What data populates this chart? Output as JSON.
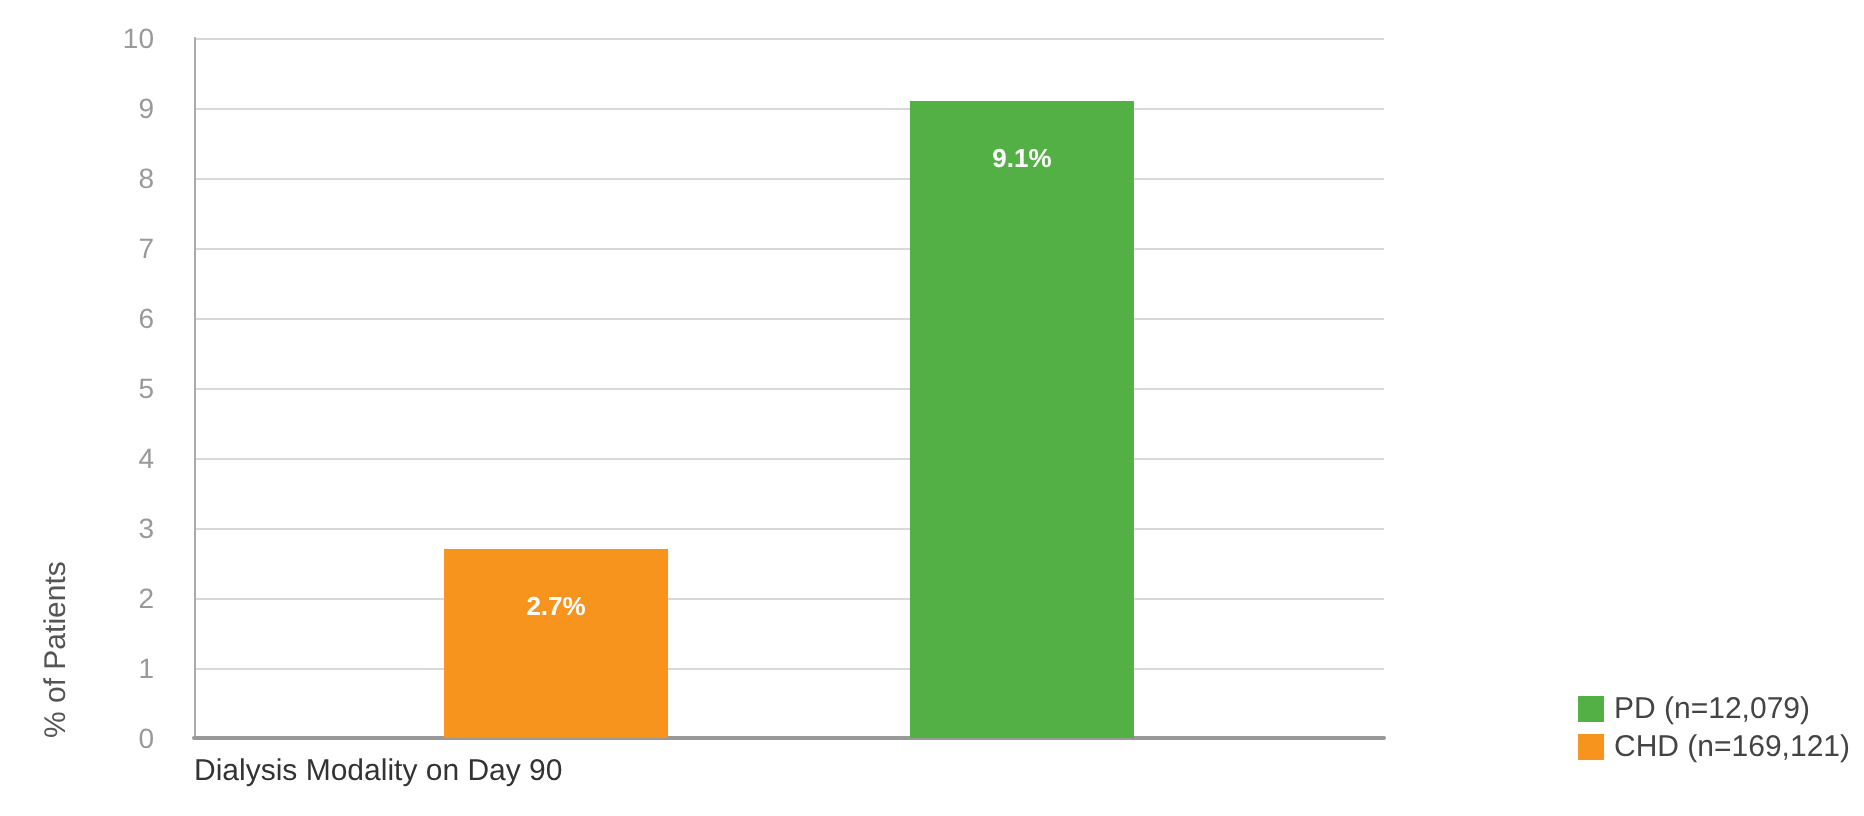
{
  "chart_data": {
    "type": "bar",
    "xlabel": "Dialysis Modality on Day 90",
    "ylabel": "% of Patients",
    "categories": [
      null
    ],
    "series": [
      {
        "name": "CHD (n=169,121)",
        "color": "#f7941d",
        "values": [
          2.7
        ],
        "value_labels": [
          "2.7%"
        ]
      },
      {
        "name": "PD (n=12,079)",
        "color": "#52b044",
        "values": [
          9.1
        ],
        "value_labels": [
          "9.1%"
        ]
      }
    ],
    "ylim": [
      0,
      10
    ],
    "yticks": [
      0,
      1,
      2,
      3,
      4,
      5,
      6,
      7,
      8,
      9,
      10
    ],
    "grid": "y",
    "legend": "bottom right"
  }
}
